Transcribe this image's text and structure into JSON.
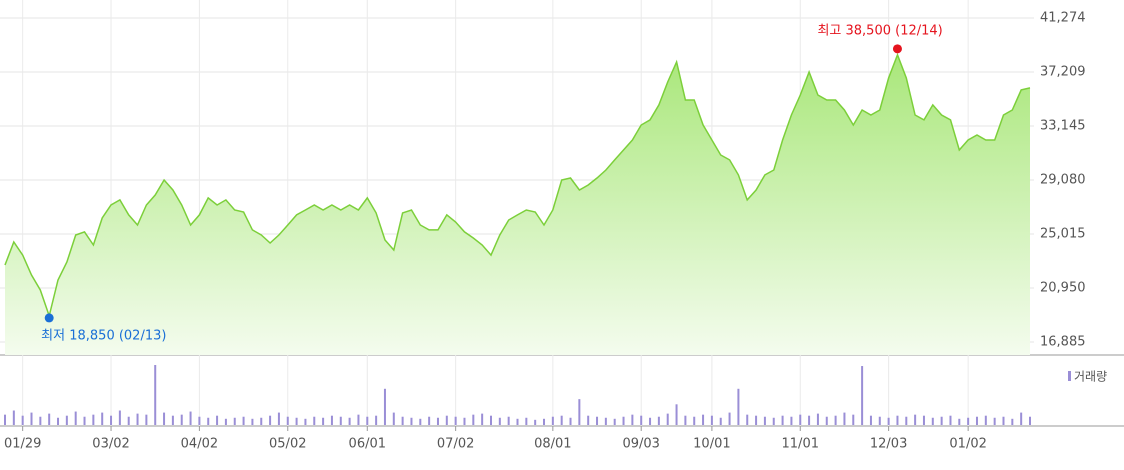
{
  "chart_data": [
    {
      "type": "area",
      "color": "#7ccf3a",
      "values": [
        22680,
        24410,
        23430,
        21930,
        20800,
        18850,
        21550,
        22910,
        24940,
        25170,
        24190,
        26220,
        27200,
        27580,
        26450,
        25690,
        27200,
        27950,
        29080,
        28330,
        27200,
        25690,
        26450,
        27730,
        27200,
        27580,
        26820,
        26670,
        25320,
        24940,
        24340,
        24940,
        25690,
        26450,
        26820,
        27200,
        26820,
        27200,
        26820,
        27200,
        26820,
        27730,
        26600,
        24560,
        23810,
        26600,
        26820,
        25690,
        25320,
        25320,
        26450,
        25920,
        25170,
        24710,
        24190,
        23430,
        24940,
        26070,
        26450,
        26820,
        26670,
        25690,
        26820,
        29080,
        29230,
        28330,
        28700,
        29230,
        29830,
        30590,
        31340,
        32090,
        33220,
        33600,
        34730,
        36460,
        37960,
        35100,
        35100,
        33220,
        32090,
        30960,
        30590,
        29460,
        27580,
        28330,
        29460,
        29830,
        32090,
        33970,
        35480,
        37210,
        35480,
        35100,
        35100,
        34350,
        33220,
        34350,
        33970,
        34350,
        36760,
        38500,
        36760,
        33970,
        33600,
        34730,
        33970,
        33600,
        31340,
        32090,
        32470,
        32090,
        32090,
        33970,
        34350,
        35860,
        36010
      ],
      "ylim": [
        16885,
        41274
      ],
      "yticks": [
        {
          "value": 16885,
          "label": "16,885"
        },
        {
          "value": 20950,
          "label": "20,950"
        },
        {
          "value": 25015,
          "label": "25,015"
        },
        {
          "value": 29080,
          "label": "29,080"
        },
        {
          "value": 33145,
          "label": "33,145"
        },
        {
          "value": 37209,
          "label": "37,209"
        },
        {
          "value": 41274,
          "label": "41,274"
        }
      ],
      "grid": true,
      "annotations": [
        {
          "label": "최저 18,850 (02/13)",
          "value": 18850,
          "color": "#1a6fd6"
        },
        {
          "label": "최고 38,500 (12/14)",
          "value": 38500,
          "color": "#e5141e"
        }
      ]
    },
    {
      "type": "bar",
      "categories": [
        null,
        null,
        "01/29",
        null,
        null,
        null,
        null,
        null,
        null,
        null,
        null,
        null,
        "03/02",
        null,
        null,
        null,
        null,
        null,
        null,
        null,
        null,
        null,
        "04/02",
        null,
        null,
        null,
        null,
        null,
        null,
        null,
        null,
        null,
        "05/02",
        null,
        null,
        null,
        null,
        null,
        null,
        null,
        null,
        "06/01",
        null,
        null,
        null,
        null,
        null,
        null,
        null,
        null,
        null,
        "07/02",
        null,
        null,
        null,
        null,
        null,
        null,
        null,
        null,
        null,
        null,
        "08/01",
        null,
        null,
        null,
        null,
        null,
        null,
        null,
        null,
        null,
        "09/03",
        null,
        null,
        null,
        null,
        null,
        null,
        null,
        "10/01",
        null,
        null,
        null,
        null,
        null,
        null,
        null,
        null,
        null,
        "11/01",
        null,
        null,
        null,
        null,
        null,
        null,
        null,
        null,
        null,
        "12/03",
        null,
        null,
        null,
        null,
        null,
        null,
        null,
        null,
        "01/02",
        null,
        null,
        null,
        null,
        null,
        null,
        null
      ],
      "series": [
        {
          "name": "거래량",
          "color": "#9a8ed6",
          "values": [
            10,
            14,
            9,
            12,
            8,
            11,
            7,
            9,
            13,
            8,
            10,
            12,
            9,
            14,
            8,
            11,
            10,
            58,
            12,
            9,
            10,
            13,
            8,
            7,
            9,
            6,
            7,
            8,
            6,
            7,
            9,
            12,
            8,
            7,
            6,
            8,
            7,
            9,
            8,
            7,
            10,
            8,
            9,
            35,
            12,
            8,
            7,
            6,
            8,
            7,
            9,
            8,
            7,
            10,
            11,
            9,
            7,
            8,
            6,
            7,
            5,
            6,
            8,
            9,
            7,
            25,
            9,
            8,
            7,
            6,
            8,
            10,
            9,
            7,
            8,
            11,
            20,
            9,
            8,
            10,
            9,
            7,
            12,
            35,
            10,
            9,
            8,
            7,
            9,
            8,
            10,
            9,
            11,
            8,
            9,
            12,
            10,
            57,
            9,
            8,
            7,
            9,
            8,
            10,
            9,
            7,
            8,
            9,
            6,
            7,
            8,
            9,
            7,
            8,
            6,
            12,
            8
          ]
        }
      ]
    }
  ]
}
